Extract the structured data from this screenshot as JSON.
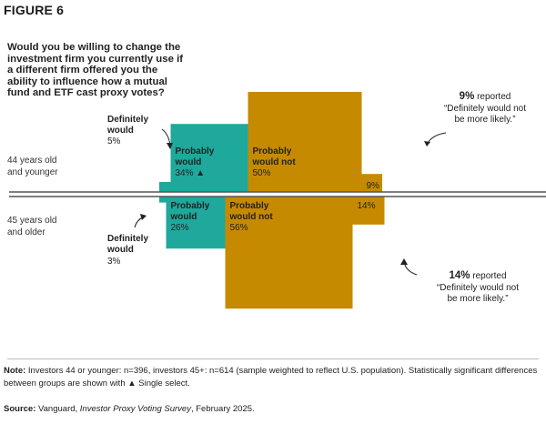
{
  "figure_label": "FIGURE 6",
  "question": "Would you be willing to change the investment firm you currently use if a different firm offered you the ability to influence how a mutual fund and ETF cast proxy votes?",
  "groups": [
    {
      "label_line1": "44 years old",
      "label_line2": "and younger"
    },
    {
      "label_line1": "45 years old",
      "label_line2": "and older"
    }
  ],
  "callout_top": {
    "pct": "9%",
    "line1": "reported",
    "line2": "“Definitely would not",
    "line3": "be more likely.”"
  },
  "callout_bottom": {
    "pct": "14%",
    "line1": "reported",
    "line2": "“Definitely would not",
    "line3": "be more likely.”"
  },
  "note_label": "Note:",
  "note_text": "Investors 44 or younger: n=396, investors 45+: n=614 (sample weighted to reflect U.S. population). Statistically significant differences between groups are shown with ▲ Single select.",
  "source_label": "Source:",
  "source_pre": "Vanguard, ",
  "source_title": "Investor Proxy Voting Survey",
  "source_post": ", February 2025.",
  "colors": {
    "teal": "#1fa89c",
    "gold": "#c68a00",
    "axis": "#555555"
  },
  "chart_data": {
    "type": "bar",
    "categories": [
      "Definitely would",
      "Probably would",
      "Probably would not",
      "Definitely would not"
    ],
    "series": [
      {
        "name": "44 years old and younger",
        "values": [
          5,
          34,
          50,
          9
        ],
        "value_labels": [
          "5%",
          "34% ▲",
          "50%",
          "9%"
        ]
      },
      {
        "name": "45 years old and older",
        "values": [
          3,
          26,
          56,
          14
        ],
        "value_labels": [
          "3%",
          "26%",
          "56%",
          "14%"
        ]
      }
    ],
    "category_labels": [
      [
        "Definitely",
        "would"
      ],
      [
        "Probably",
        "would"
      ],
      [
        "Probably",
        "would not"
      ],
      [
        "Definitely would not"
      ]
    ],
    "category_colors": [
      "#1fa89c",
      "#1fa89c",
      "#c68a00",
      "#c68a00"
    ],
    "ylim": [
      0,
      56
    ],
    "title": "",
    "xlabel": "",
    "ylabel": ""
  }
}
